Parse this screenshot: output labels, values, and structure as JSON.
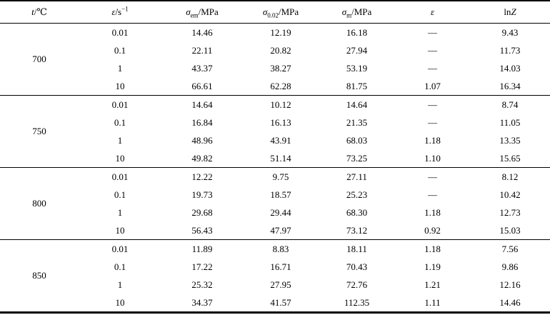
{
  "page": {
    "background": "#ffffff",
    "text_color": "#000000",
    "rule_color": "#000000"
  },
  "table": {
    "columns": [
      {
        "sym": "t",
        "unit": "/℃"
      },
      {
        "sym": "ε̇",
        "unit": "/s",
        "sup": "−1"
      },
      {
        "sym": "σ",
        "sub": "em",
        "unit": "/MPa"
      },
      {
        "sym": "σ",
        "sub": "0.02",
        "unit": "/MPa"
      },
      {
        "sym": "σ",
        "sub": "m",
        "unit": "/MPa"
      },
      {
        "sym": "ε"
      },
      {
        "pre": "ln",
        "sym": "Z"
      }
    ],
    "groups": [
      {
        "temperature": "700",
        "rows": [
          {
            "cells": [
              "0.01",
              "14.46",
              "12.19",
              "16.18",
              "—",
              "9.43"
            ]
          },
          {
            "cells": [
              "0.1",
              "22.11",
              "20.82",
              "27.94",
              "—",
              "11.73"
            ]
          },
          {
            "cells": [
              "1",
              "43.37",
              "38.27",
              "53.19",
              "—",
              "14.03"
            ]
          },
          {
            "cells": [
              "10",
              "66.61",
              "62.28",
              "81.75",
              "1.07",
              "16.34"
            ]
          }
        ]
      },
      {
        "temperature": "750",
        "rows": [
          {
            "cells": [
              "0.01",
              "14.64",
              "10.12",
              "14.64",
              "—",
              "8.74"
            ]
          },
          {
            "cells": [
              "0.1",
              "16.84",
              "16.13",
              "21.35",
              "—",
              "11.05"
            ]
          },
          {
            "cells": [
              "1",
              "48.96",
              "43.91",
              "68.03",
              "1.18",
              "13.35"
            ]
          },
          {
            "cells": [
              "10",
              "49.82",
              "51.14",
              "73.25",
              "1.10",
              "15.65"
            ]
          }
        ]
      },
      {
        "temperature": "800",
        "rows": [
          {
            "cells": [
              "0.01",
              "12.22",
              "9.75",
              "27.11",
              "—",
              "8.12"
            ]
          },
          {
            "cells": [
              "0.1",
              "19.73",
              "18.57",
              "25.23",
              "—",
              "10.42"
            ]
          },
          {
            "cells": [
              "1",
              "29.68",
              "29.44",
              "68.30",
              "1.18",
              "12.73"
            ]
          },
          {
            "cells": [
              "10",
              "56.43",
              "47.97",
              "73.12",
              "0.92",
              "15.03"
            ]
          }
        ]
      },
      {
        "temperature": "850",
        "rows": [
          {
            "cells": [
              "0.01",
              "11.89",
              "8.83",
              "18.11",
              "1.18",
              "7.56"
            ]
          },
          {
            "cells": [
              "0.1",
              "17.22",
              "16.71",
              "70.43",
              "1.19",
              "9.86"
            ]
          },
          {
            "cells": [
              "1",
              "25.32",
              "27.95",
              "72.76",
              "1.21",
              "12.16"
            ]
          },
          {
            "cells": [
              "10",
              "34.37",
              "41.57",
              "112.35",
              "1.11",
              "14.46"
            ]
          }
        ]
      }
    ]
  }
}
